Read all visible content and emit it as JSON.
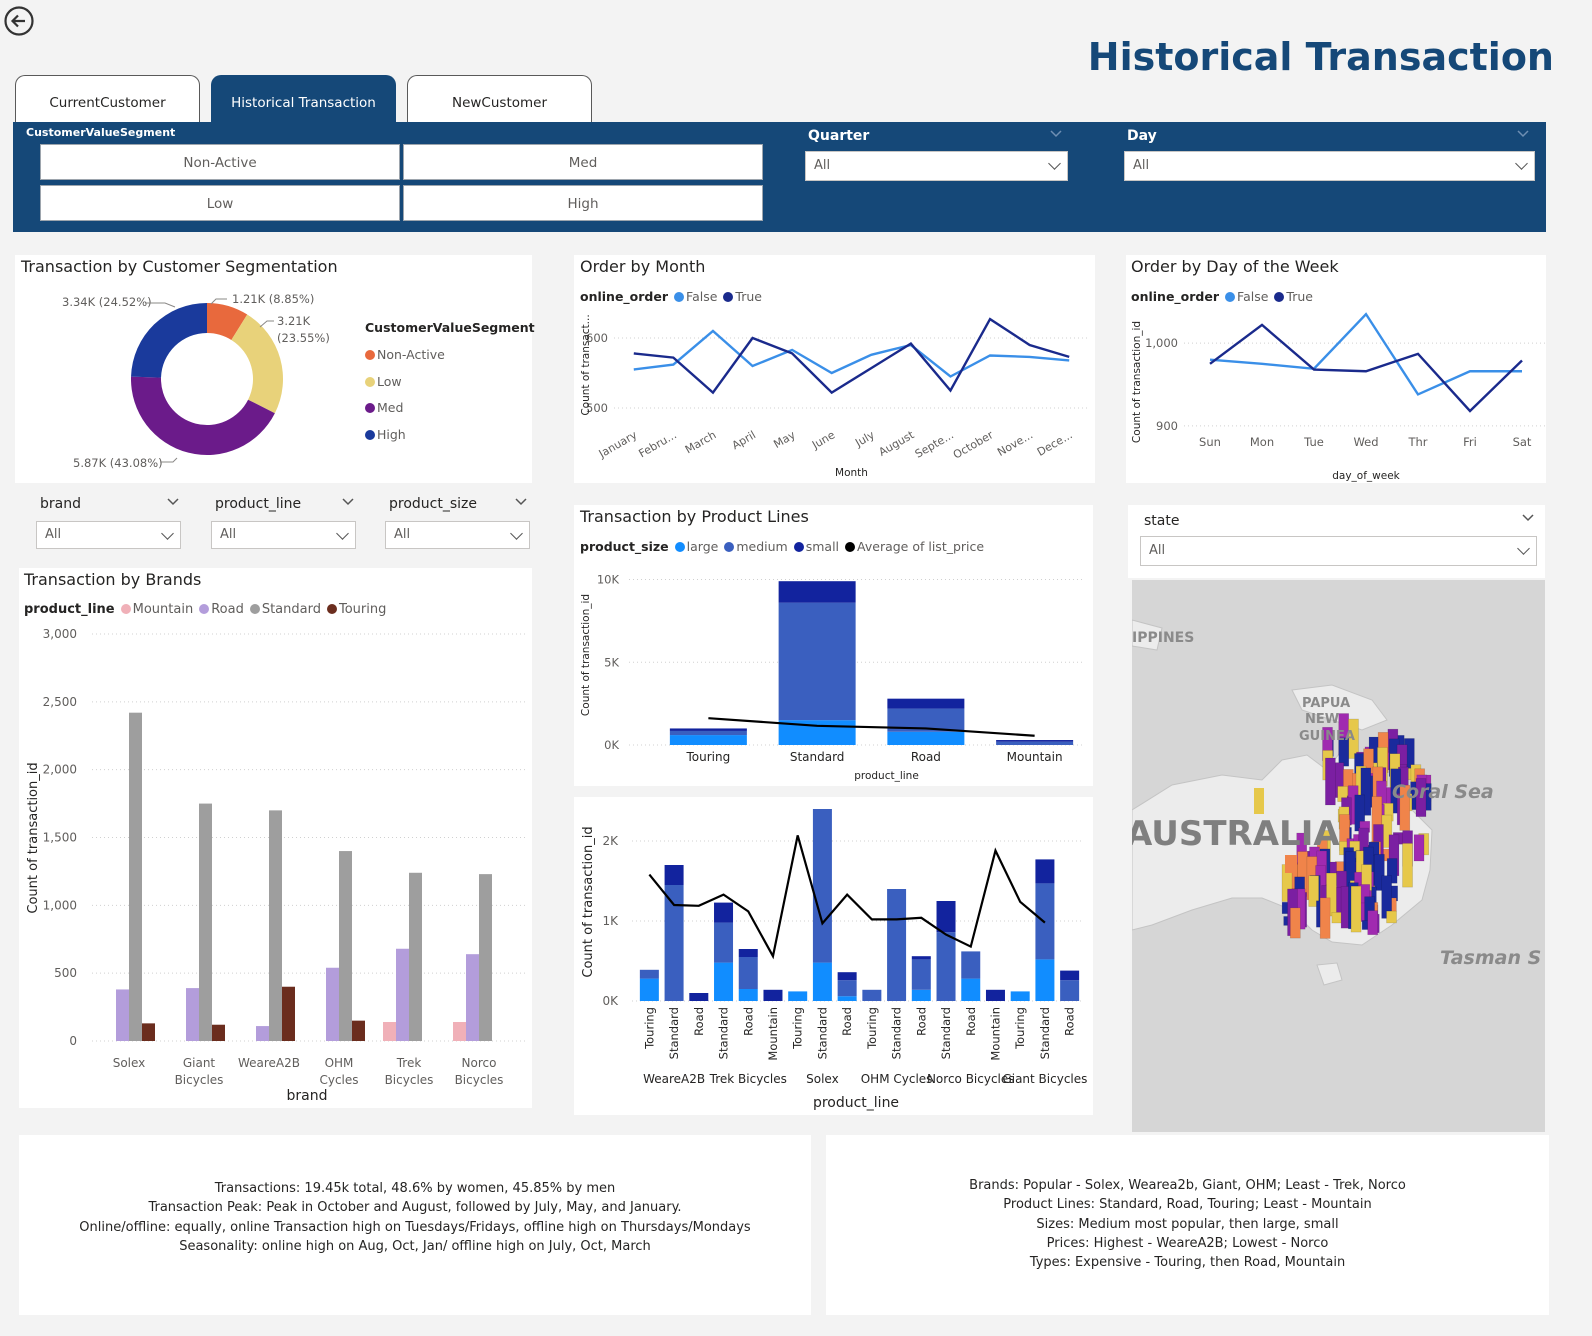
{
  "page_title": "Historical Transaction",
  "tabs": [
    {
      "label": "CurrentCustomer",
      "active": false
    },
    {
      "label": "Historical Transaction",
      "active": true
    },
    {
      "label": "NewCustomer",
      "active": false
    }
  ],
  "filters": {
    "segment_title": "CustomerValueSegment",
    "segment_options": [
      "Non-Active",
      "Med",
      "Low",
      "High"
    ],
    "quarter_label": "Quarter",
    "quarter_value": "All",
    "day_label": "Day",
    "day_value": "All",
    "brand_label": "brand",
    "brand_value": "All",
    "product_line_label": "product_line",
    "product_line_value": "All",
    "product_size_label": "product_size",
    "product_size_value": "All",
    "state_label": "state",
    "state_value": "All"
  },
  "colors": {
    "header_blue": "#154878",
    "title_blue": "#154878",
    "false_blue": "#3a8fe8",
    "true_navy": "#1a2a8c"
  },
  "donut": {
    "title": "Transaction by Customer Segmentation",
    "legend_title": "CustomerValueSegment",
    "labels": {
      "non_active": "1.21K (8.85%)",
      "low_a": "3.21K",
      "low_b": "(23.55%)",
      "med": "5.87K (43.08%)",
      "high": "3.34K (24.52%)"
    }
  },
  "order_month": {
    "title": "Order by Month",
    "legend_label": "online_order",
    "xlabel": "Month",
    "ylabel": "Count of transact...",
    "yticks": [
      "600",
      "500"
    ]
  },
  "order_dow": {
    "title": "Order by Day of the Week",
    "legend_label": "online_order",
    "xlabel": "day_of_week",
    "ylabel": "Count of transaction_id",
    "yticks": [
      "1,000",
      "900"
    ]
  },
  "product_lines": {
    "title": "Transaction by Product Lines",
    "legend_label": "product_size",
    "xlabel": "product_line",
    "ylabel": "Count of transaction_id",
    "yticks": [
      "10K",
      "5K",
      "0K"
    ]
  },
  "brands": {
    "title": "Transaction by Brands",
    "legend_label": "product_line",
    "xlabel": "brand",
    "ylabel": "Count of transaction_id",
    "yticks": [
      "3,000",
      "2,500",
      "2,000",
      "1,500",
      "1,000",
      "500",
      "0"
    ],
    "cat_lines": [
      [
        "Solex"
      ],
      [
        "Giant",
        "Bicycles"
      ],
      [
        "WeareA2B"
      ],
      [
        "OHM",
        "Cycles"
      ],
      [
        "Trek",
        "Bicycles"
      ],
      [
        "Norco",
        "Bicycles"
      ]
    ]
  },
  "brand_line": {
    "xlabel": "product_line",
    "ylabel": "Count of transaction_id",
    "yticks": [
      "2K",
      "1K",
      "0K"
    ],
    "group_labels": [
      "WeareA2B",
      "Trek Bicycles",
      "Solex",
      "OHM Cycles",
      "Norco Bicy...",
      "Giant Bicy..."
    ]
  },
  "map": {
    "labels": {
      "philippines": "IPPINES",
      "png": [
        "PAPUA",
        "NEW",
        "GUINEA"
      ],
      "coral": "Coral Sea",
      "australia": "AUSTRALIA",
      "tasman": "Tasman S"
    }
  },
  "notes": {
    "left": [
      "Transactions: 19.45k total, 48.6% by women, 45.85% by men",
      "Transaction Peak: Peak in October and August, followed by July, May, and January.",
      "Online/offline: equally, online Transaction high on Tuesdays/Fridays, offline high on Thursdays/Mondays",
      "Seasonality: online high on Aug, Oct, Jan/ offline high on July, Oct, March"
    ],
    "right": [
      "Brands: Popular - Solex, Wearea2b, Giant, OHM; Least - Trek, Norco",
      "Product Lines: Standard, Road, Touring; Least - Mountain",
      "Sizes: Medium most popular, then large, small",
      "Prices: Highest - WeareA2B; Lowest - Norco",
      "Types: Expensive - Touring, then Road, Mountain"
    ]
  },
  "chart_data": [
    {
      "type": "pie",
      "title": "Transaction by Customer Segmentation",
      "categories": [
        "Non-Active",
        "Low",
        "Med",
        "High"
      ],
      "values": [
        1210,
        3210,
        5870,
        3340
      ],
      "percent": [
        8.85,
        23.55,
        43.08,
        24.52
      ],
      "colors": [
        "#e8693d",
        "#e8d27a",
        "#6b1b8a",
        "#1a3a9c"
      ]
    },
    {
      "type": "line",
      "title": "Order by Month",
      "xlabel": "Month",
      "categories": [
        "January",
        "Febru...",
        "March",
        "April",
        "May",
        "June",
        "July",
        "August",
        "Septe...",
        "October",
        "Nove...",
        "Dece..."
      ],
      "ylim": [
        490,
        640
      ],
      "series": [
        {
          "name": "False",
          "color": "#3a8fe8",
          "values": [
            555,
            562,
            610,
            560,
            583,
            550,
            576,
            590,
            545,
            575,
            573,
            568
          ]
        },
        {
          "name": "True",
          "color": "#1a2a8c",
          "values": [
            578,
            572,
            522,
            600,
            578,
            522,
            557,
            592,
            525,
            627,
            590,
            573
          ]
        }
      ]
    },
    {
      "type": "line",
      "title": "Order by Day of the Week",
      "xlabel": "day_of_week",
      "categories": [
        "Sun",
        "Mon",
        "Tue",
        "Wed",
        "Thr",
        "Fri",
        "Sat"
      ],
      "ylim": [
        895,
        1040
      ],
      "series": [
        {
          "name": "False",
          "color": "#3a8fe8",
          "values": [
            980,
            975,
            969,
            1035,
            938,
            966,
            966
          ]
        },
        {
          "name": "True",
          "color": "#1a2a8c",
          "values": [
            975,
            1022,
            968,
            966,
            987,
            918,
            979
          ]
        }
      ]
    },
    {
      "type": "bar",
      "title": "Transaction by Product Lines",
      "xlabel": "product_line",
      "categories": [
        "Touring",
        "Standard",
        "Road",
        "Mountain"
      ],
      "ylim": [
        0,
        11000
      ],
      "stacked": true,
      "series": [
        {
          "name": "large",
          "color": "#118dff",
          "values": [
            600,
            1500,
            800,
            0
          ]
        },
        {
          "name": "medium",
          "color": "#3a5fbf",
          "values": [
            250,
            7100,
            1400,
            200
          ]
        },
        {
          "name": "small",
          "color": "#12239e",
          "values": [
            150,
            1300,
            600,
            100
          ]
        }
      ],
      "line": {
        "name": "Average of list_price",
        "color": "#000000",
        "values": [
          1620,
          1160,
          1000,
          560
        ]
      }
    },
    {
      "type": "bar",
      "title": "Transaction by Brands",
      "xlabel": "brand",
      "ylabel": "Count of transaction_id",
      "categories": [
        "Solex",
        "Giant Bicycles",
        "WeareA2B",
        "OHM Cycles",
        "Trek Bicycles",
        "Norco Bicycles"
      ],
      "ylim": [
        0,
        3000
      ],
      "series": [
        {
          "name": "Mountain",
          "color": "#f0b0b8",
          "values": [
            0,
            0,
            0,
            0,
            140,
            140
          ]
        },
        {
          "name": "Road",
          "color": "#b39ddb",
          "values": [
            380,
            390,
            110,
            540,
            680,
            640
          ]
        },
        {
          "name": "Standard",
          "color": "#9e9e9e",
          "values": [
            2420,
            1750,
            1700,
            1400,
            1240,
            1230
          ]
        },
        {
          "name": "Touring",
          "color": "#6b2d1e",
          "values": [
            130,
            120,
            400,
            150,
            0,
            0
          ]
        }
      ]
    },
    {
      "type": "bar",
      "xlabel": "product_line",
      "ylabel": "Count of transaction_id",
      "ylim": [
        0,
        2300
      ],
      "stacked": true,
      "groups": [
        {
          "brand": "WeareA2B",
          "bars": [
            {
              "line": "Touring",
              "large": 280,
              "medium": 110,
              "small": 0
            },
            {
              "line": "Standard",
              "large": 0,
              "medium": 1450,
              "small": 250
            },
            {
              "line": "Road",
              "large": 0,
              "medium": 0,
              "small": 100
            }
          ]
        },
        {
          "brand": "Trek Bicycles",
          "bars": [
            {
              "line": "Standard",
              "large": 480,
              "medium": 500,
              "small": 250
            },
            {
              "line": "Road",
              "large": 150,
              "medium": 400,
              "small": 100
            },
            {
              "line": "Mountain",
              "large": 0,
              "medium": 0,
              "small": 140
            }
          ]
        },
        {
          "brand": "Solex",
          "bars": [
            {
              "line": "Touring",
              "large": 120,
              "medium": 0,
              "small": 0
            },
            {
              "line": "Standard",
              "large": 480,
              "medium": 1920,
              "small": 0
            },
            {
              "line": "Road",
              "large": 60,
              "medium": 200,
              "small": 100
            }
          ]
        },
        {
          "brand": "OHM Cycles",
          "bars": [
            {
              "line": "Touring",
              "large": 0,
              "medium": 140,
              "small": 0
            },
            {
              "line": "Standard",
              "large": 0,
              "medium": 1400,
              "small": 0
            },
            {
              "line": "Road",
              "large": 140,
              "medium": 380,
              "small": 40
            }
          ]
        },
        {
          "brand": "Norco Bicycles",
          "bars": [
            {
              "line": "Standard",
              "large": 0,
              "medium": 860,
              "small": 390
            },
            {
              "line": "Road",
              "large": 280,
              "medium": 340,
              "small": 0
            },
            {
              "line": "Mountain",
              "large": 0,
              "medium": 0,
              "small": 140
            }
          ]
        },
        {
          "brand": "Giant Bicycles",
          "bars": [
            {
              "line": "Touring",
              "large": 120,
              "medium": 0,
              "small": 0
            },
            {
              "line": "Standard",
              "large": 520,
              "medium": 950,
              "small": 300
            },
            {
              "line": "Road",
              "large": 0,
              "medium": 260,
              "small": 120
            }
          ]
        }
      ],
      "line_values": [
        1580,
        1200,
        1190,
        1330,
        1120,
        560,
        2070,
        970,
        1330,
        1020,
        1020,
        1040,
        830,
        680,
        1880,
        1240,
        980
      ]
    }
  ]
}
